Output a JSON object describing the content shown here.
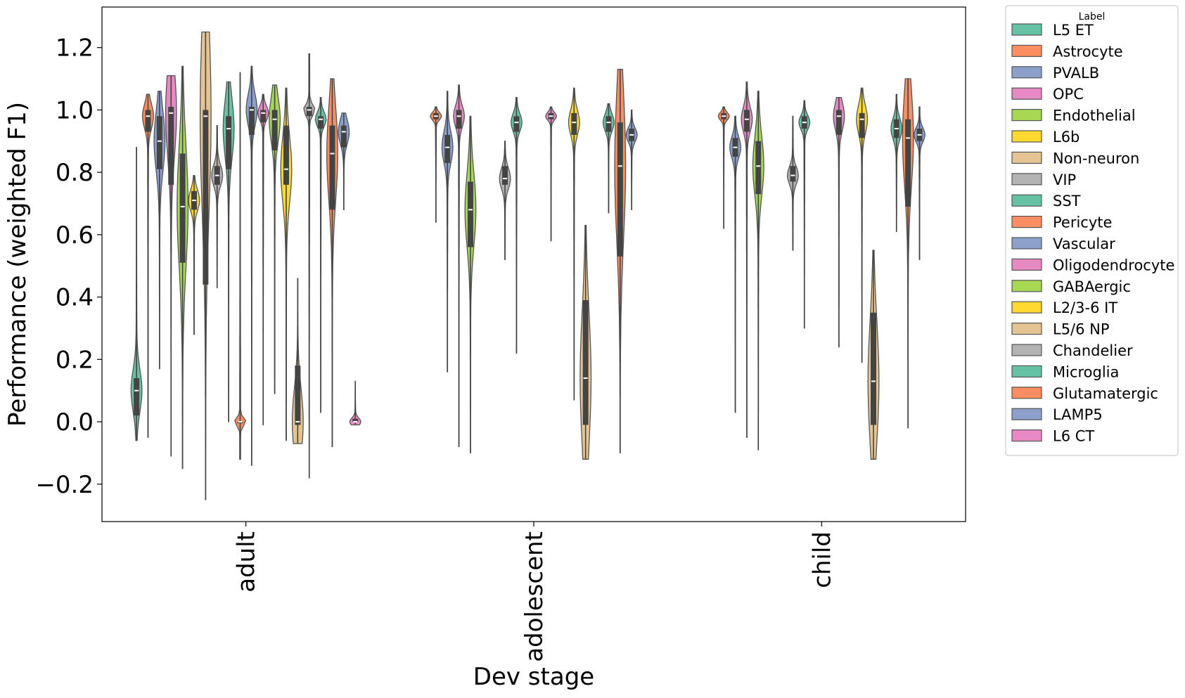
{
  "chart_data": {
    "type": "violin",
    "xlabel": "Dev stage",
    "ylabel": "Performance (weighted F1)",
    "ylim": [
      -0.32,
      1.33
    ],
    "yticks": [
      -0.2,
      0.0,
      0.2,
      0.4,
      0.6,
      0.8,
      1.0,
      1.2
    ],
    "ytick_labels": [
      "−0.2",
      "0.0",
      "0.2",
      "0.4",
      "0.6",
      "0.8",
      "1.0",
      "1.2"
    ],
    "categories": [
      "adult",
      "adolescent",
      "child"
    ],
    "legend": {
      "title": "Label",
      "placement": "outside-right",
      "entries": [
        {
          "name": "L5 ET",
          "color": "#66c2a5"
        },
        {
          "name": "Astrocyte",
          "color": "#fc8d62"
        },
        {
          "name": "PVALB",
          "color": "#8da0cb"
        },
        {
          "name": "OPC",
          "color": "#e78ac3"
        },
        {
          "name": "Endothelial",
          "color": "#a6d854"
        },
        {
          "name": "L6b",
          "color": "#ffd92f"
        },
        {
          "name": "Non-neuron",
          "color": "#e5c494"
        },
        {
          "name": "VIP",
          "color": "#b3b3b3"
        },
        {
          "name": "SST",
          "color": "#66c2a5"
        },
        {
          "name": "Pericyte",
          "color": "#fc8d62"
        },
        {
          "name": "Vascular",
          "color": "#8da0cb"
        },
        {
          "name": "Oligodendrocyte",
          "color": "#e78ac3"
        },
        {
          "name": "GABAergic",
          "color": "#a6d854"
        },
        {
          "name": "L2/3-6 IT",
          "color": "#ffd92f"
        },
        {
          "name": "L5/6 NP",
          "color": "#e5c494"
        },
        {
          "name": "Chandelier",
          "color": "#b3b3b3"
        },
        {
          "name": "Microglia",
          "color": "#66c2a5"
        },
        {
          "name": "Glutamatergic",
          "color": "#fc8d62"
        },
        {
          "name": "LAMP5",
          "color": "#8da0cb"
        },
        {
          "name": "L6 CT",
          "color": "#e78ac3"
        }
      ]
    },
    "series": [
      {
        "name": "L5 ET",
        "values": [
          {
            "stage": "adult",
            "min": -0.06,
            "q1": 0.02,
            "median": 0.1,
            "q3": 0.14,
            "max": 0.88
          },
          null,
          null
        ]
      },
      {
        "name": "Astrocyte",
        "values": [
          {
            "stage": "adult",
            "min": -0.05,
            "q1": 0.93,
            "median": 0.98,
            "q3": 1.0,
            "max": 1.05
          },
          {
            "stage": "adolescent",
            "min": 0.64,
            "q1": 0.97,
            "median": 0.98,
            "q3": 0.99,
            "max": 1.01
          },
          {
            "stage": "child",
            "min": 0.62,
            "q1": 0.97,
            "median": 0.98,
            "q3": 0.99,
            "max": 1.01
          }
        ]
      },
      {
        "name": "PVALB",
        "values": [
          {
            "stage": "adult",
            "min": 0.17,
            "q1": 0.81,
            "median": 0.9,
            "q3": 0.98,
            "max": 1.06
          },
          {
            "stage": "adolescent",
            "min": 0.16,
            "q1": 0.83,
            "median": 0.88,
            "q3": 0.92,
            "max": 1.06
          },
          {
            "stage": "child",
            "min": 0.03,
            "q1": 0.85,
            "median": 0.88,
            "q3": 0.91,
            "max": 0.98
          }
        ]
      },
      {
        "name": "OPC",
        "values": [
          {
            "stage": "adult",
            "min": -0.11,
            "q1": 0.76,
            "median": 0.99,
            "q3": 1.01,
            "max": 1.11
          },
          {
            "stage": "adolescent",
            "min": -0.08,
            "q1": 0.94,
            "median": 0.98,
            "q3": 1.0,
            "max": 1.08
          },
          {
            "stage": "child",
            "min": -0.05,
            "q1": 0.93,
            "median": 0.97,
            "q3": 1.0,
            "max": 1.09
          }
        ]
      },
      {
        "name": "Endothelial",
        "values": [
          {
            "stage": "adult",
            "min": -0.15,
            "q1": 0.51,
            "median": 0.69,
            "q3": 0.86,
            "max": 1.14
          },
          {
            "stage": "adolescent",
            "min": -0.1,
            "q1": 0.56,
            "median": 0.68,
            "q3": 0.77,
            "max": 0.98
          },
          {
            "stage": "child",
            "min": -0.09,
            "q1": 0.73,
            "median": 0.82,
            "q3": 0.9,
            "max": 1.06
          }
        ]
      },
      {
        "name": "L6b",
        "values": [
          {
            "stage": "adult",
            "min": 0.28,
            "q1": 0.68,
            "median": 0.71,
            "q3": 0.74,
            "max": 0.79
          },
          null,
          null
        ]
      },
      {
        "name": "Non-neuron",
        "values": [
          {
            "stage": "adult",
            "min": -0.25,
            "q1": 0.44,
            "median": 0.98,
            "q3": 1.0,
            "max": 1.25
          },
          null,
          null
        ]
      },
      {
        "name": "VIP",
        "values": [
          {
            "stage": "adult",
            "min": 0.43,
            "q1": 0.76,
            "median": 0.79,
            "q3": 0.82,
            "max": 0.95
          },
          {
            "stage": "adolescent",
            "min": 0.52,
            "q1": 0.76,
            "median": 0.78,
            "q3": 0.82,
            "max": 0.9
          },
          {
            "stage": "child",
            "min": 0.55,
            "q1": 0.77,
            "median": 0.79,
            "q3": 0.82,
            "max": 0.98
          }
        ]
      },
      {
        "name": "SST",
        "values": [
          {
            "stage": "adult",
            "min": 0.0,
            "q1": 0.81,
            "median": 0.94,
            "q3": 0.98,
            "max": 1.09
          },
          {
            "stage": "adolescent",
            "min": 0.22,
            "q1": 0.93,
            "median": 0.96,
            "q3": 0.98,
            "max": 1.04
          },
          {
            "stage": "child",
            "min": 0.3,
            "q1": 0.94,
            "median": 0.96,
            "q3": 0.98,
            "max": 1.03
          }
        ]
      },
      {
        "name": "Pericyte",
        "values": [
          {
            "stage": "adult",
            "min": -0.12,
            "q1": -0.0,
            "median": 0.0,
            "q3": 0.0,
            "max": 1.12
          },
          null,
          null
        ]
      },
      {
        "name": "Vascular",
        "values": [
          {
            "stage": "adult",
            "min": -0.14,
            "q1": 0.92,
            "median": 1.0,
            "q3": 1.01,
            "max": 1.14
          },
          null,
          null
        ]
      },
      {
        "name": "Oligodendrocyte",
        "values": [
          {
            "stage": "adult",
            "min": -0.01,
            "q1": 0.96,
            "median": 0.99,
            "q3": 1.0,
            "max": 1.05
          },
          {
            "stage": "adolescent",
            "min": 0.58,
            "q1": 0.97,
            "median": 0.98,
            "q3": 0.99,
            "max": 1.01
          },
          {
            "stage": "child",
            "min": 0.24,
            "q1": 0.92,
            "median": 0.98,
            "q3": 1.0,
            "max": 1.04
          }
        ]
      },
      {
        "name": "GABAergic",
        "values": [
          {
            "stage": "adult",
            "min": 0.09,
            "q1": 0.87,
            "median": 0.97,
            "q3": 1.0,
            "max": 1.08
          },
          null,
          null
        ]
      },
      {
        "name": "L2/3-6 IT",
        "values": [
          {
            "stage": "adult",
            "min": -0.06,
            "q1": 0.76,
            "median": 0.81,
            "q3": 0.95,
            "max": 1.07
          },
          {
            "stage": "adolescent",
            "min": 0.07,
            "q1": 0.92,
            "median": 0.96,
            "q3": 0.99,
            "max": 1.07
          },
          {
            "stage": "child",
            "min": 0.19,
            "q1": 0.91,
            "median": 0.97,
            "q3": 0.99,
            "max": 1.07
          }
        ]
      },
      {
        "name": "L5/6 NP",
        "values": [
          {
            "stage": "adult",
            "min": -0.07,
            "q1": -0.01,
            "median": 0.0,
            "q3": 0.18,
            "max": 0.46
          },
          {
            "stage": "adolescent",
            "min": -0.12,
            "q1": -0.01,
            "median": 0.14,
            "q3": 0.39,
            "max": 0.63
          },
          {
            "stage": "child",
            "min": -0.12,
            "q1": -0.01,
            "median": 0.13,
            "q3": 0.35,
            "max": 0.55
          }
        ]
      },
      {
        "name": "Chandelier",
        "values": [
          {
            "stage": "adult",
            "min": -0.18,
            "q1": 0.98,
            "median": 1.0,
            "q3": 1.01,
            "max": 1.18
          },
          null,
          null
        ]
      },
      {
        "name": "Microglia",
        "values": [
          {
            "stage": "adult",
            "min": 0.03,
            "q1": 0.94,
            "median": 0.97,
            "q3": 0.98,
            "max": 1.04
          },
          {
            "stage": "adolescent",
            "min": 0.67,
            "q1": 0.93,
            "median": 0.96,
            "q3": 0.98,
            "max": 1.02
          },
          {
            "stage": "child",
            "min": 0.61,
            "q1": 0.91,
            "median": 0.94,
            "q3": 0.97,
            "max": 1.05
          }
        ]
      },
      {
        "name": "Glutamatergic",
        "values": [
          {
            "stage": "adult",
            "min": -0.08,
            "q1": 0.68,
            "median": 0.86,
            "q3": 0.95,
            "max": 1.1
          },
          {
            "stage": "adolescent",
            "min": -0.1,
            "q1": 0.53,
            "median": 0.82,
            "q3": 0.96,
            "max": 1.13
          },
          {
            "stage": "child",
            "min": -0.02,
            "q1": 0.69,
            "median": 0.91,
            "q3": 0.97,
            "max": 1.1
          }
        ]
      },
      {
        "name": "LAMP5",
        "values": [
          {
            "stage": "adult",
            "min": 0.68,
            "q1": 0.88,
            "median": 0.93,
            "q3": 0.95,
            "max": 0.99
          },
          {
            "stage": "adolescent",
            "min": 0.68,
            "q1": 0.9,
            "median": 0.92,
            "q3": 0.94,
            "max": 1.0
          },
          {
            "stage": "child",
            "min": 0.52,
            "q1": 0.9,
            "median": 0.92,
            "q3": 0.94,
            "max": 1.01
          }
        ]
      },
      {
        "name": "L6 CT",
        "values": [
          {
            "stage": "adult",
            "min": -0.01,
            "q1": -0.0,
            "median": 0.0,
            "q3": 0.01,
            "max": 0.13
          },
          null,
          null
        ]
      }
    ]
  }
}
